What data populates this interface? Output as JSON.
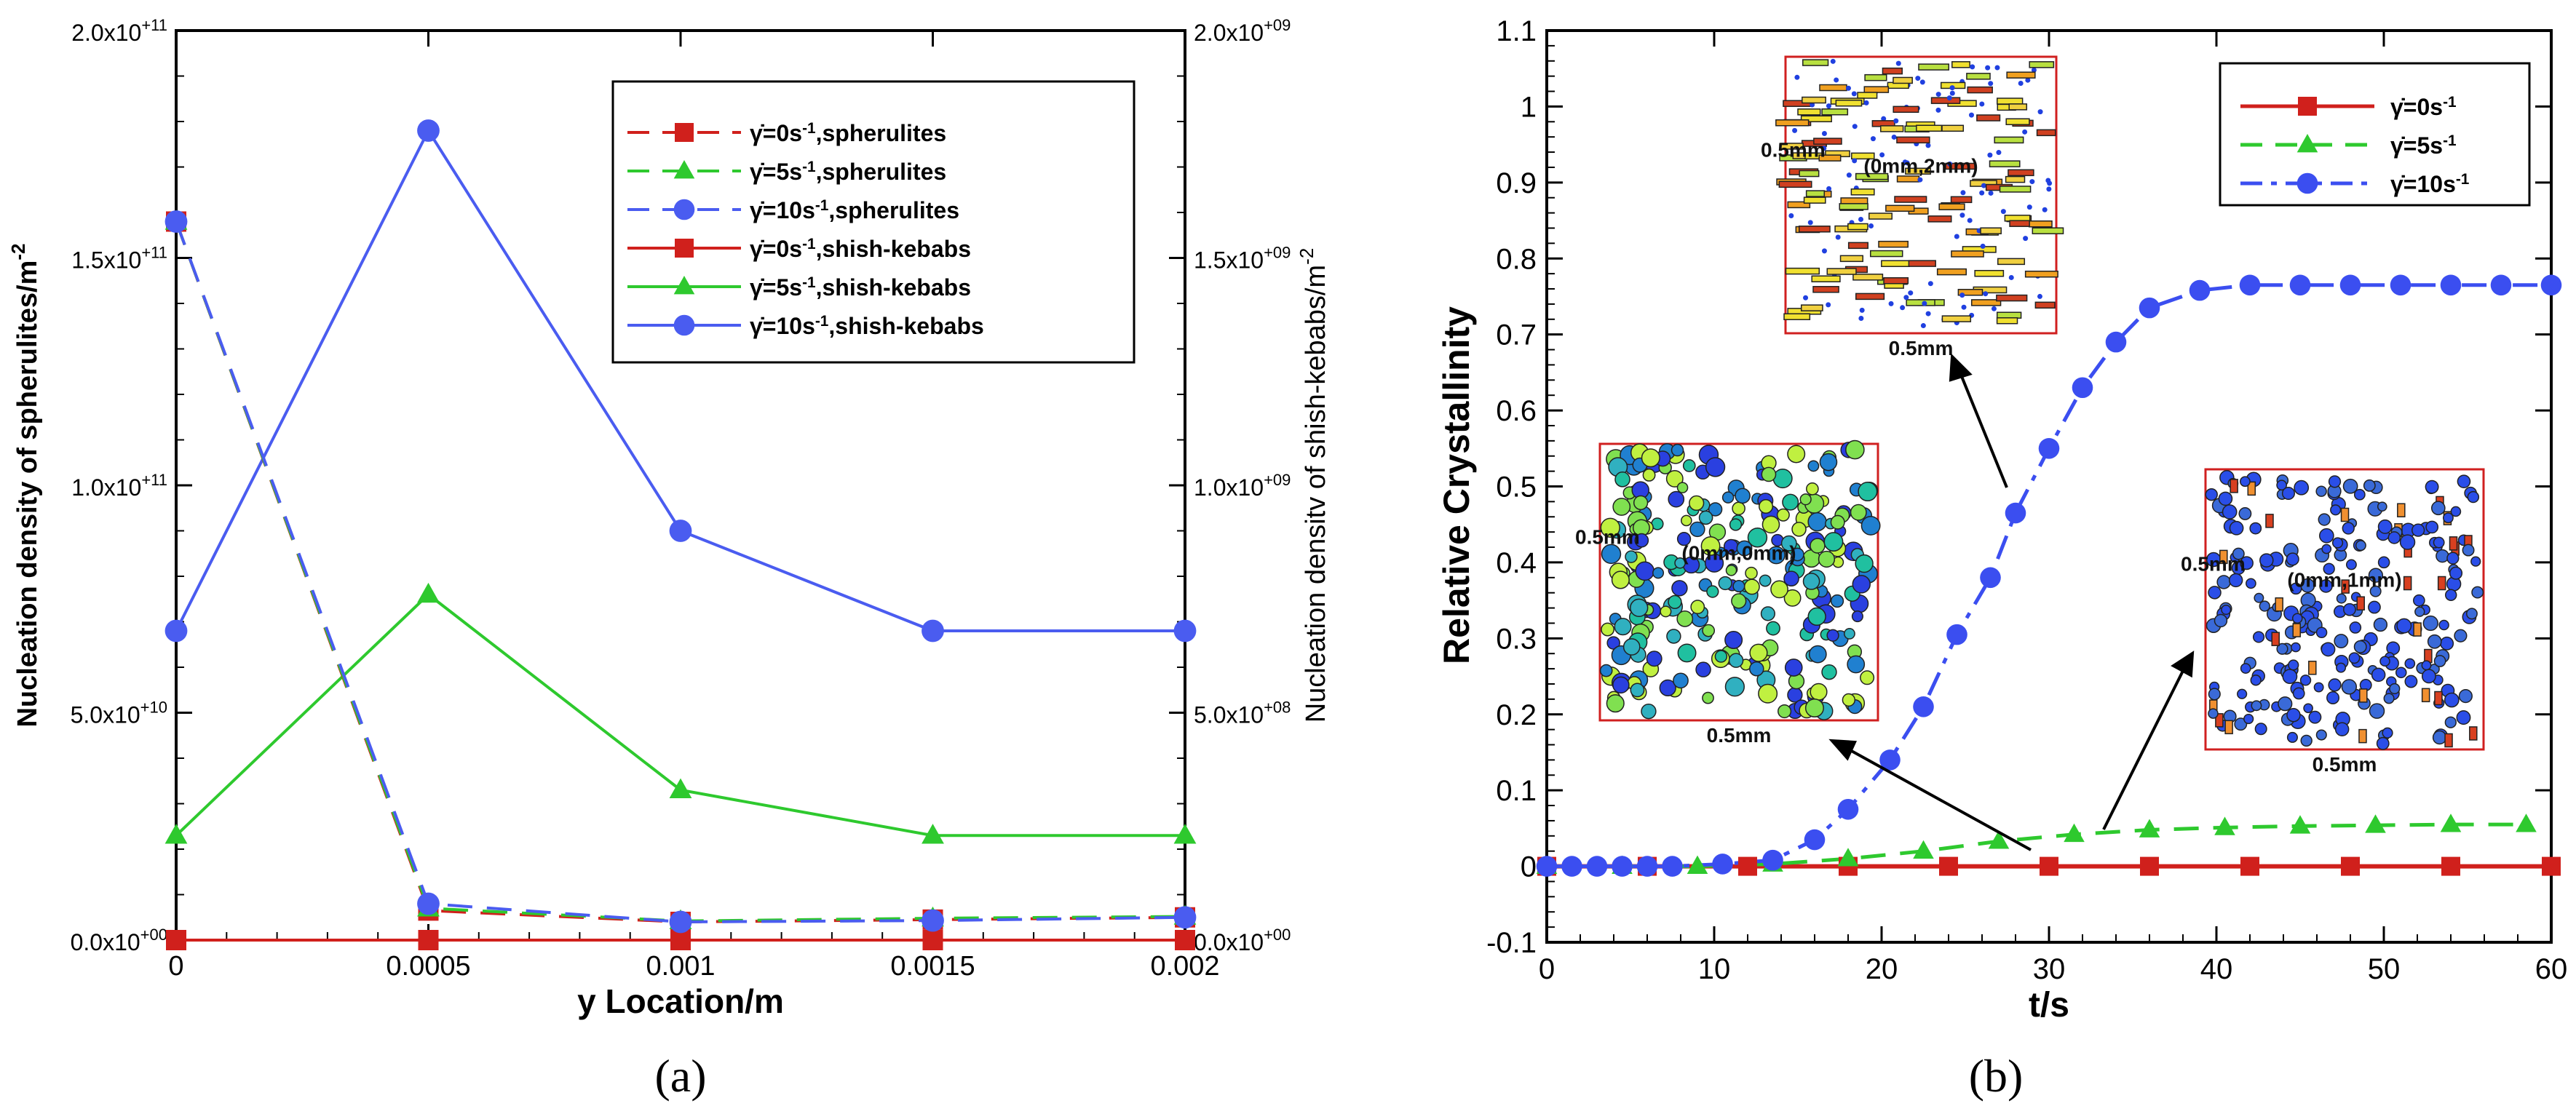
{
  "panels": {
    "a": {
      "label": "(a)"
    },
    "b": {
      "label": "(b)"
    }
  },
  "chart_data": [
    {
      "id": "a",
      "type": "line",
      "title": "",
      "xlabel": "y Location/m",
      "ylabel_left": "Nucleation density of spherulites/m",
      "ylabel_left_sup": "-2",
      "ylabel_right": "Nucleation densitv of shish-kebabs/m",
      "ylabel_right_sup": "-2",
      "x": [
        0,
        0.0005,
        0.001,
        0.0015,
        0.002
      ],
      "xlim": [
        0,
        0.002
      ],
      "x_ticks": [
        "0",
        "0.0005",
        "0.001",
        "0.0015",
        "0.002"
      ],
      "ylim_left": [
        0,
        200000000000.0
      ],
      "ylim_right": [
        0,
        2000000000.0
      ],
      "y_ticks_left": [
        {
          "mant": "0.0x10",
          "exp": "+00"
        },
        {
          "mant": "5.0x10",
          "exp": "+10"
        },
        {
          "mant": "1.0x10",
          "exp": "+11"
        },
        {
          "mant": "1.5x10",
          "exp": "+11"
        },
        {
          "mant": "2.0x10",
          "exp": "+11"
        }
      ],
      "y_ticks_right": [
        {
          "mant": "0.0x10",
          "exp": "+00"
        },
        {
          "mant": "5.0x10",
          "exp": "+08"
        },
        {
          "mant": "1.0x10",
          "exp": "+09"
        },
        {
          "mant": "1.5x10",
          "exp": "+09"
        },
        {
          "mant": "2.0x10",
          "exp": "+09"
        }
      ],
      "legend_position": "top-right",
      "series": [
        {
          "name_rate": "=0s",
          "name_suffix": ",spherulites",
          "axis": "left",
          "color": "#d0201c",
          "dash": true,
          "marker": "square",
          "values": [
            158000000000.0,
            6500000000.0,
            4000000000.0,
            4500000000.0,
            5000000000.0
          ]
        },
        {
          "name_rate": "=5s",
          "name_suffix": ",spherulites",
          "axis": "left",
          "color": "#2ec92e",
          "dash": true,
          "marker": "triangle",
          "values": [
            158000000000.0,
            7000000000.0,
            4200000000.0,
            4800000000.0,
            5200000000.0
          ]
        },
        {
          "name_rate": "=10s",
          "name_suffix": ",spherulites",
          "axis": "left",
          "color": "#4a5cf0",
          "dash": true,
          "marker": "circle",
          "values": [
            158000000000.0,
            8000000000.0,
            4000000000.0,
            4300000000.0,
            5000000000.0
          ]
        },
        {
          "name_rate": "=0s",
          "name_suffix": ",shish-kebabs",
          "axis": "right",
          "color": "#d0201c",
          "dash": false,
          "marker": "square",
          "values": [
            0,
            0,
            0,
            0,
            0
          ]
        },
        {
          "name_rate": "=5s",
          "name_suffix": ",shish-kebabs",
          "axis": "right",
          "color": "#2ec92e",
          "dash": false,
          "marker": "triangle",
          "values": [
            230000000.0,
            760000000.0,
            330000000.0,
            230000000.0,
            230000000.0
          ]
        },
        {
          "name_rate": "=10s",
          "name_suffix": ",shish-kebabs",
          "axis": "right",
          "color": "#4a5cf0",
          "dash": false,
          "marker": "circle",
          "values": [
            680000000.0,
            1780000000.0,
            900000000.0,
            680000000.0,
            680000000.0
          ]
        }
      ]
    },
    {
      "id": "b",
      "type": "line",
      "title": "",
      "xlabel": "t/s",
      "ylabel": "Relative Crystallinity",
      "xlim": [
        0,
        60
      ],
      "ylim": [
        -0.1,
        1.1
      ],
      "x_ticks": [
        0,
        10,
        20,
        30,
        40,
        50,
        60
      ],
      "y_ticks": [
        "-0.1",
        "0",
        "0.1",
        "0.2",
        "0.3",
        "0.4",
        "0.5",
        "0.6",
        "0.7",
        "0.8",
        "0.9",
        "1",
        "1.1"
      ],
      "legend_position": "top-right",
      "series": [
        {
          "name_rate": "=0s",
          "color": "#d0201c",
          "style": "solid",
          "marker": "square",
          "x": [
            0,
            6,
            12,
            18,
            24,
            30,
            36,
            42,
            48,
            54,
            60
          ],
          "y": [
            0,
            0,
            0,
            0,
            0,
            0,
            0,
            0,
            0,
            0,
            0
          ]
        },
        {
          "name_rate": "=5s",
          "color": "#2ec92e",
          "style": "dash",
          "marker": "triangle",
          "x": [
            0,
            4.5,
            9,
            13.5,
            18,
            22.5,
            27,
            31.5,
            36,
            40.5,
            45,
            49.5,
            54,
            58.5
          ],
          "y": [
            0,
            0,
            0,
            0.003,
            0.01,
            0.02,
            0.033,
            0.042,
            0.048,
            0.051,
            0.053,
            0.054,
            0.055,
            0.055
          ]
        },
        {
          "name_rate": "=10s",
          "color": "#3b4ef0",
          "style": "dashdot",
          "marker": "circle",
          "x": [
            0,
            1.5,
            3,
            4.5,
            6,
            7.5,
            10.5,
            13.5,
            16,
            18,
            20.5,
            22.5,
            24.5,
            26.5,
            28,
            30,
            32,
            34,
            36,
            39,
            42,
            45,
            48,
            51,
            54,
            57,
            60
          ],
          "y": [
            0,
            0,
            0,
            0,
            0,
            0,
            0.003,
            0.008,
            0.035,
            0.075,
            0.14,
            0.21,
            0.305,
            0.38,
            0.465,
            0.55,
            0.63,
            0.69,
            0.735,
            0.758,
            0.765,
            0.765,
            0.765,
            0.765,
            0.765,
            0.765,
            0.765
          ]
        }
      ],
      "insets": [
        {
          "id": "inset-top",
          "side_label": "0.5mm",
          "bottom_label": "0.5mm",
          "center_label": "(0mm,2mm)"
        },
        {
          "id": "inset-left",
          "side_label": "0.5mm",
          "bottom_label": "0.5mm",
          "center_label": "(0mm,0mm)"
        },
        {
          "id": "inset-right",
          "side_label": "0.5mm",
          "bottom_label": "0.5mm",
          "center_label": "(0mm,1mm)"
        }
      ]
    }
  ]
}
